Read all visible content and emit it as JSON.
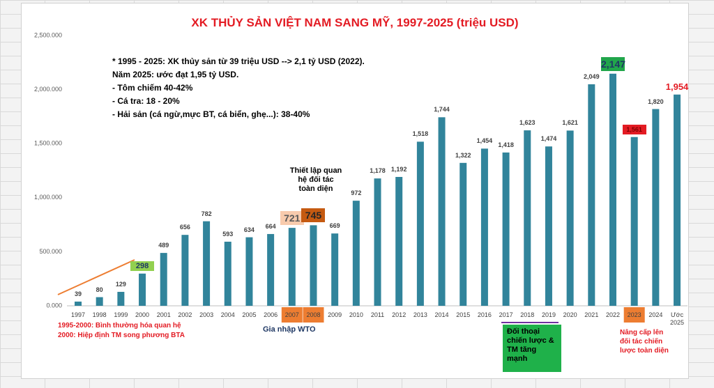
{
  "chart_data": {
    "type": "bar",
    "title": "XK THỦY SẢN VIỆT NAM SANG MỸ, 1997-2025 (triệu USD)",
    "categories": [
      "1997",
      "1998",
      "1999",
      "2000",
      "2001",
      "2002",
      "2003",
      "2004",
      "2005",
      "2006",
      "2007",
      "2008",
      "2009",
      "2010",
      "2011",
      "2012",
      "2013",
      "2014",
      "2015",
      "2016",
      "2017",
      "2018",
      "2019",
      "2020",
      "2021",
      "2022",
      "2023",
      "2024",
      "Ước 2025"
    ],
    "values": [
      39,
      80,
      129,
      298,
      489,
      656,
      782,
      593,
      634,
      664,
      721,
      745,
      669,
      972,
      1178,
      1192,
      1518,
      1744,
      1322,
      1454,
      1418,
      1623,
      1474,
      1621,
      2049,
      2147,
      1561,
      1820,
      1954
    ],
    "value_labels": [
      "39",
      "80",
      "129",
      "298",
      "489",
      "656",
      "782",
      "593",
      "634",
      "664",
      "721",
      "745",
      "669",
      "972",
      "1,178",
      "1,192",
      "1,518",
      "1,744",
      "1,322",
      "1,454",
      "1,418",
      "1,623",
      "1,474",
      "1,621",
      "2,049",
      "2,147",
      "1,561",
      "1,820",
      "1,954"
    ],
    "color": "#31849b",
    "ylim": [
      0,
      2500
    ],
    "yticks": [
      {
        "value": 0,
        "label": "0.000"
      },
      {
        "value": 500,
        "label": "500.000"
      },
      {
        "value": 1000,
        "label": "1,000.000"
      },
      {
        "value": 1500,
        "label": "1,500.000"
      },
      {
        "value": 2000,
        "label": "2,000.000"
      },
      {
        "value": 2500,
        "label": "2,500.000"
      }
    ],
    "grid": false,
    "annotations": {
      "summary": [
        "* 1995 - 2025: XK thủy sản từ 39 triệu USD --> 2,1 tỷ USD (2022).",
        "Năm 2025: ước đạt 1,95 tỷ USD.",
        "- Tôm chiếm 40-42%",
        "- Cá tra: 18 - 20%",
        "- Hải sản (cá ngừ,mực BT, cá biển, ghẹ...): 38-40%"
      ],
      "partnership": "Thiết lập quan hệ đối tác toàn diện",
      "wto": "Gia nhập WTO",
      "normalization": [
        "1995-2000: Bình thường hóa quan hệ",
        "2000: Hiệp định TM song phương BTA"
      ],
      "dialogue": "Đối thoại chiến lược & TM tăng mạnh",
      "upgrade": "Nâng cấp lên đối tác chiến lược toàn diện"
    }
  }
}
